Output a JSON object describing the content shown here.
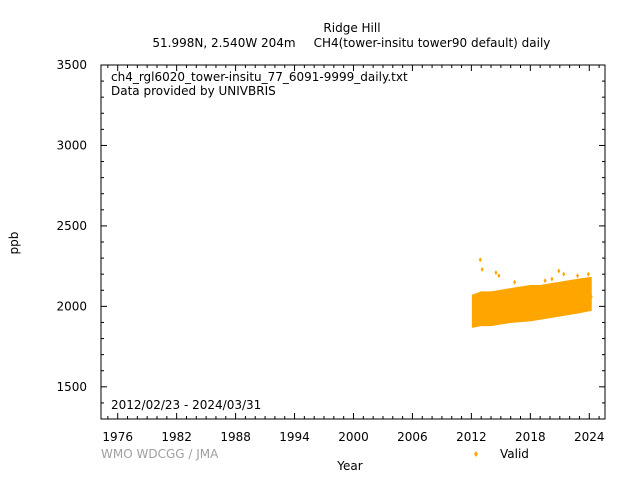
{
  "header": {
    "station": "Ridge Hill",
    "location": "51.998N, 2.540W 204m",
    "series_title": "CH4(tower-insitu tower90 default) daily"
  },
  "annotations": {
    "filename": "ch4_rgl6020_tower-insitu_77_6091-9999_daily.txt",
    "provider": "Data provided by UNIVBRIS",
    "period": "2012/02/23 - 2024/03/31"
  },
  "footer": {
    "credit": "WMO WDCGG / JMA"
  },
  "colors": {
    "valid": "#ffa500",
    "axis": "#000000",
    "credit": "#a0a0a0"
  },
  "chart_data": {
    "type": "scatter",
    "xlabel": "Year",
    "ylabel": "ppb",
    "xlim": [
      1974.3,
      2025.6
    ],
    "ylim": [
      1300,
      3500
    ],
    "x_ticks": [
      1976,
      1982,
      1988,
      1994,
      2000,
      2006,
      2012,
      2018,
      2024
    ],
    "y_ticks": [
      1500,
      2000,
      2500,
      3000,
      3500
    ],
    "grid": false,
    "legend": {
      "position": "bottom-right",
      "entries": [
        "Valid"
      ]
    },
    "series": [
      {
        "name": "Valid",
        "color": "#ffa500",
        "x": [
          2012.2,
          2012.3,
          2012.4,
          2012.5,
          2012.6,
          2012.7,
          2012.8,
          2012.9,
          2013.0,
          2013.1,
          2013.2,
          2013.3,
          2013.4,
          2013.5,
          2013.6,
          2013.7,
          2013.8,
          2013.9,
          2014.0,
          2014.1,
          2014.2,
          2014.3,
          2014.4,
          2014.5,
          2014.6,
          2014.7,
          2014.8,
          2014.9,
          2015.0,
          2015.1,
          2015.2,
          2015.3,
          2015.4,
          2015.5,
          2015.6,
          2015.7,
          2015.8,
          2015.9,
          2016.0,
          2016.1,
          2016.2,
          2016.3,
          2016.4,
          2016.5,
          2016.6,
          2016.7,
          2016.8,
          2016.9,
          2017.0,
          2017.1,
          2017.2,
          2017.3,
          2017.4,
          2017.5,
          2017.6,
          2017.7,
          2017.8,
          2017.9,
          2018.0,
          2018.1,
          2018.2,
          2018.3,
          2018.4,
          2018.5,
          2018.6,
          2018.7,
          2018.8,
          2018.9,
          2019.0,
          2019.1,
          2019.2,
          2019.3,
          2019.4,
          2019.5,
          2019.6,
          2019.7,
          2019.8,
          2019.9,
          2020.0,
          2020.1,
          2020.2,
          2020.3,
          2020.4,
          2020.5,
          2020.6,
          2020.7,
          2020.8,
          2020.9,
          2021.0,
          2021.1,
          2021.2,
          2021.3,
          2021.4,
          2021.5,
          2021.6,
          2021.7,
          2021.8,
          2021.9,
          2022.0,
          2022.1,
          2022.2,
          2022.3,
          2022.4,
          2022.5,
          2022.6,
          2022.7,
          2022.8,
          2022.9,
          2023.0,
          2023.1,
          2023.2,
          2023.3,
          2023.4,
          2023.5,
          2023.6,
          2023.7,
          2023.8,
          2023.9,
          2024.0,
          2024.1,
          2024.2,
          2012.9,
          2013.1,
          2014.5,
          2014.8,
          2016.4,
          2019.5,
          2020.2,
          2020.9,
          2021.4,
          2022.8,
          2023.9
        ],
        "y": [
          1960,
          1930,
          1920,
          1910,
          1900,
          1915,
          1950,
          1990,
          1985,
          1960,
          1940,
          1930,
          1920,
          1930,
          1960,
          2000,
          1990,
          1970,
          1950,
          1935,
          1925,
          1940,
          1965,
          2005,
          2000,
          1980,
          1960,
          1945,
          1935,
          1950,
          1975,
          2010,
          2005,
          1985,
          1965,
          1950,
          1945,
          1960,
          1985,
          2020,
          2015,
          1995,
          1975,
          1965,
          1955,
          1970,
          1995,
          2030,
          2025,
          2005,
          1985,
          1975,
          1965,
          1980,
          2005,
          2040,
          2035,
          2015,
          1995,
          1985,
          1975,
          1990,
          2015,
          2050,
          2045,
          2025,
          2005,
          1995,
          1985,
          2000,
          2025,
          2060,
          2055,
          2035,
          2015,
          2005,
          1995,
          2010,
          2035,
          2070,
          2065,
          2045,
          2025,
          2015,
          2005,
          2020,
          2045,
          2080,
          2075,
          2055,
          2035,
          2025,
          2015,
          2030,
          2055,
          2090,
          2085,
          2065,
          2045,
          2035,
          2025,
          2040,
          2065,
          2100,
          2095,
          2075,
          2055,
          2045,
          2035,
          2050,
          2075,
          2110,
          2105,
          2085,
          2065,
          2055,
          2045,
          2060,
          2085,
          2110,
          2060,
          2290,
          2230,
          2210,
          2190,
          2150,
          2160,
          2170,
          2220,
          2200,
          2190,
          2200
        ],
        "band": {
          "x": [
            2012.1,
            2013.0,
            2014.0,
            2015.0,
            2016.0,
            2017.0,
            2018.0,
            2019.0,
            2020.0,
            2021.0,
            2022.0,
            2023.0,
            2024.2
          ],
          "y_low": [
            1870,
            1880,
            1880,
            1890,
            1900,
            1905,
            1910,
            1920,
            1930,
            1940,
            1950,
            1960,
            1975
          ],
          "y_high": [
            2070,
            2090,
            2090,
            2100,
            2110,
            2120,
            2130,
            2130,
            2140,
            2150,
            2160,
            2170,
            2180
          ]
        }
      }
    ]
  }
}
